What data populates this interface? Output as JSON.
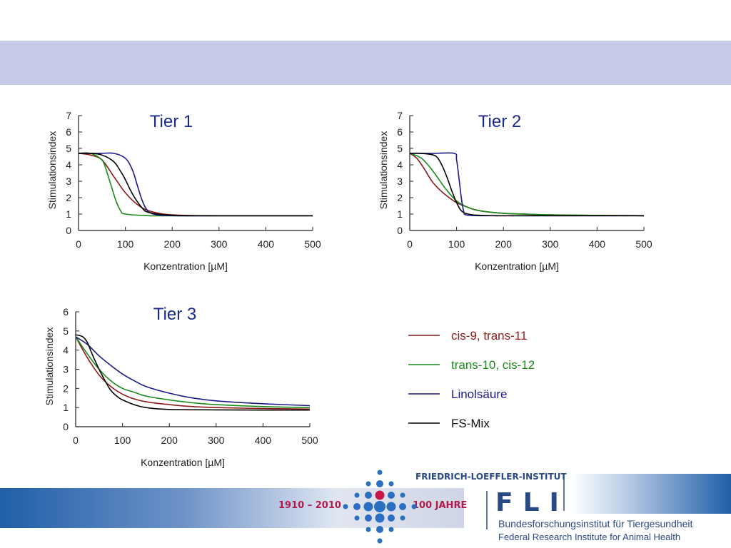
{
  "colors": {
    "cis-9, trans-11": "#8b1a1a",
    "trans-10, cis-12": "#1a8a1a",
    "Linolsäure": "#1a1a8a",
    "FS-Mix": "#000000"
  },
  "chart_data": [
    {
      "type": "line",
      "title": "Tier 1",
      "xlabel": "Konzentration [µM]",
      "ylabel": "Stimulationsindex",
      "xlim": [
        0,
        500
      ],
      "ylim": [
        0,
        7
      ],
      "xticks": [
        0,
        100,
        200,
        300,
        400,
        500
      ],
      "yticks": [
        0,
        1,
        2,
        3,
        4,
        5,
        6,
        7
      ],
      "series": [
        {
          "name": "cis-9, trans-11",
          "x": [
            0,
            25,
            50,
            75,
            100,
            125,
            150,
            200,
            300,
            400,
            500
          ],
          "y": [
            4.7,
            4.6,
            4.3,
            3.3,
            2.3,
            1.6,
            1.2,
            0.95,
            0.9,
            0.9,
            0.9
          ]
        },
        {
          "name": "trans-10, cis-12",
          "x": [
            0,
            25,
            50,
            60,
            70,
            80,
            90,
            100,
            150,
            200,
            300,
            400,
            500
          ],
          "y": [
            4.7,
            4.7,
            4.3,
            3.6,
            2.7,
            1.8,
            1.2,
            1.0,
            0.9,
            0.9,
            0.9,
            0.9,
            0.9
          ]
        },
        {
          "name": "Linolsäure",
          "x": [
            0,
            25,
            50,
            75,
            100,
            115,
            125,
            135,
            145,
            160,
            200,
            300,
            400,
            500
          ],
          "y": [
            4.7,
            4.7,
            4.7,
            4.7,
            4.4,
            3.7,
            2.8,
            1.9,
            1.3,
            1.0,
            0.9,
            0.9,
            0.9,
            0.9
          ]
        },
        {
          "name": "FS-Mix",
          "x": [
            0,
            25,
            50,
            75,
            90,
            100,
            110,
            120,
            135,
            150,
            200,
            300,
            400,
            500
          ],
          "y": [
            4.7,
            4.7,
            4.6,
            4.2,
            3.6,
            3.1,
            2.5,
            2.0,
            1.4,
            1.1,
            0.92,
            0.9,
            0.9,
            0.9
          ]
        }
      ]
    },
    {
      "type": "line",
      "title": "Tier 2",
      "xlabel": "Konzentration [µM]",
      "ylabel": "Stimulationsindex",
      "xlim": [
        0,
        500
      ],
      "ylim": [
        0,
        7
      ],
      "xticks": [
        0,
        100,
        200,
        300,
        400,
        500
      ],
      "yticks": [
        0,
        1,
        2,
        3,
        4,
        5,
        6,
        7
      ],
      "series": [
        {
          "name": "cis-9, trans-11",
          "x": [
            0,
            15,
            30,
            50,
            75,
            100,
            125,
            150,
            200,
            300,
            400,
            500
          ],
          "y": [
            4.7,
            4.4,
            3.8,
            2.9,
            2.2,
            1.7,
            1.4,
            1.2,
            1.05,
            0.95,
            0.92,
            0.9
          ]
        },
        {
          "name": "trans-10, cis-12",
          "x": [
            0,
            25,
            50,
            75,
            100,
            125,
            150,
            200,
            250,
            300,
            400,
            500
          ],
          "y": [
            4.7,
            4.4,
            3.6,
            2.6,
            1.8,
            1.4,
            1.2,
            1.05,
            1.0,
            0.95,
            0.92,
            0.9
          ]
        },
        {
          "name": "Linolsäure",
          "x": [
            0,
            50,
            95,
            100,
            105,
            110,
            115,
            120,
            150,
            200,
            300,
            400,
            500
          ],
          "y": [
            4.7,
            4.7,
            4.7,
            4.3,
            3.2,
            2.0,
            1.2,
            0.95,
            0.9,
            0.9,
            0.9,
            0.9,
            0.9
          ]
        },
        {
          "name": "FS-Mix",
          "x": [
            0,
            25,
            50,
            60,
            70,
            80,
            90,
            100,
            110,
            125,
            150,
            200,
            300,
            400,
            500
          ],
          "y": [
            4.7,
            4.7,
            4.6,
            4.4,
            3.9,
            3.2,
            2.4,
            1.7,
            1.2,
            1.0,
            0.92,
            0.9,
            0.9,
            0.9,
            0.9
          ]
        }
      ]
    },
    {
      "type": "line",
      "title": "Tier 3",
      "xlabel": "Konzentration [µM]",
      "ylabel": "Stimulationsindex",
      "xlim": [
        0,
        500
      ],
      "ylim": [
        0,
        6
      ],
      "xticks": [
        0,
        100,
        200,
        300,
        400,
        500
      ],
      "yticks": [
        0,
        1,
        2,
        3,
        4,
        5,
        6
      ],
      "series": [
        {
          "name": "cis-9, trans-11",
          "x": [
            0,
            25,
            50,
            75,
            100,
            125,
            150,
            200,
            250,
            300,
            400,
            500
          ],
          "y": [
            4.7,
            3.6,
            2.7,
            2.1,
            1.7,
            1.45,
            1.3,
            1.15,
            1.05,
            1.0,
            0.95,
            0.92
          ]
        },
        {
          "name": "trans-10, cis-12",
          "x": [
            0,
            25,
            50,
            75,
            100,
            125,
            150,
            200,
            250,
            300,
            400,
            500
          ],
          "y": [
            4.7,
            3.8,
            3.0,
            2.4,
            2.0,
            1.8,
            1.6,
            1.4,
            1.25,
            1.15,
            1.05,
            1.0
          ]
        },
        {
          "name": "Linolsäure",
          "x": [
            0,
            25,
            50,
            75,
            100,
            125,
            150,
            200,
            250,
            300,
            400,
            500
          ],
          "y": [
            4.7,
            4.3,
            3.7,
            3.2,
            2.75,
            2.4,
            2.1,
            1.75,
            1.5,
            1.35,
            1.2,
            1.1
          ]
        },
        {
          "name": "FS-Mix",
          "x": [
            0,
            15,
            25,
            35,
            50,
            65,
            75,
            90,
            100,
            125,
            150,
            200,
            300,
            400,
            500
          ],
          "y": [
            4.8,
            4.7,
            4.4,
            3.8,
            3.0,
            2.3,
            1.9,
            1.55,
            1.4,
            1.15,
            1.0,
            0.9,
            0.88,
            0.87,
            0.87
          ]
        }
      ]
    }
  ],
  "legend": [
    {
      "label": "cis-9, trans-11",
      "color": "#8b1a1a"
    },
    {
      "label": "trans-10, cis-12",
      "color": "#1a8a1a"
    },
    {
      "label": "Linolsäure",
      "color": "#1a1a8a"
    },
    {
      "label": "FS-Mix",
      "color": "#000000"
    }
  ],
  "footer": {
    "years": "1910 – 2010",
    "anniversary": "100 JAHRE",
    "institute_name": "FRIEDRICH-LOEFFLER-INSTITUT",
    "acronym": "FLI",
    "name_de": "Bundesforschungsinstitut für Tiergesundheit",
    "name_en": "Federal Research Institute for Animal Health"
  }
}
